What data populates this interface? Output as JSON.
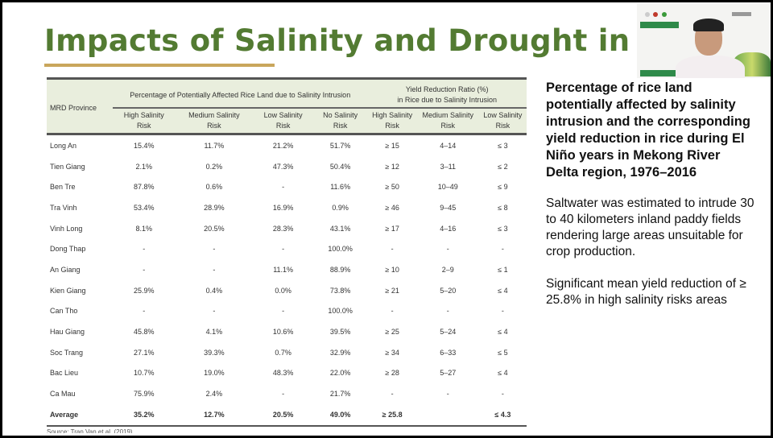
{
  "slide": {
    "title": "Impacts of Salinity and Drought in Vietnam",
    "colors": {
      "title": "#537b32",
      "underline": "#c9a65c",
      "header_bg": "#e9eedd"
    }
  },
  "table": {
    "province_header": "MRD Province",
    "group1": "Percentage of Potentially Affected Rice Land due to Salinity Intrusion",
    "group2_line1": "Yield Reduction Ratio (%)",
    "group2_line2": "in Rice due to Salinity Intrusion",
    "columns": [
      [
        "High Salinity",
        "Risk"
      ],
      [
        "Medium Salinity",
        "Risk"
      ],
      [
        "Low Salinity",
        "Risk"
      ],
      [
        "No Salinity",
        "Risk"
      ],
      [
        "High Salinity",
        "Risk"
      ],
      [
        "Medium Salinity",
        "Risk"
      ],
      [
        "Low Salinity",
        "Risk"
      ]
    ],
    "rows": [
      [
        "Long An",
        "15.4%",
        "11.7%",
        "21.2%",
        "51.7%",
        "≥ 15",
        "4–14",
        "≤ 3"
      ],
      [
        "Tien Giang",
        "2.1%",
        "0.2%",
        "47.3%",
        "50.4%",
        "≥ 12",
        "3–11",
        "≤ 2"
      ],
      [
        "Ben Tre",
        "87.8%",
        "0.6%",
        "-",
        "11.6%",
        "≥ 50",
        "10–49",
        "≤ 9"
      ],
      [
        "Tra Vinh",
        "53.4%",
        "28.9%",
        "16.9%",
        "0.9%",
        "≥ 46",
        "9–45",
        "≤ 8"
      ],
      [
        "Vinh Long",
        "8.1%",
        "20.5%",
        "28.3%",
        "43.1%",
        "≥ 17",
        "4–16",
        "≤ 3"
      ],
      [
        "Dong Thap",
        "-",
        "-",
        "-",
        "100.0%",
        "-",
        "-",
        "-"
      ],
      [
        "An Giang",
        "-",
        "-",
        "11.1%",
        "88.9%",
        "≥ 10",
        "2–9",
        "≤ 1"
      ],
      [
        "Kien Giang",
        "25.9%",
        "0.4%",
        "0.0%",
        "73.8%",
        "≥ 21",
        "5–20",
        "≤ 4"
      ],
      [
        "Can Tho",
        "-",
        "-",
        "-",
        "100.0%",
        "-",
        "-",
        "-"
      ],
      [
        "Hau Giang",
        "45.8%",
        "4.1%",
        "10.6%",
        "39.5%",
        "≥ 25",
        "5–24",
        "≤ 4"
      ],
      [
        "Soc Trang",
        "27.1%",
        "39.3%",
        "0.7%",
        "32.9%",
        "≥ 34",
        "6–33",
        "≤ 5"
      ],
      [
        "Bac Lieu",
        "10.7%",
        "19.0%",
        "48.3%",
        "22.0%",
        "≥ 28",
        "5–27",
        "≤ 4"
      ],
      [
        "Ca Mau",
        "75.9%",
        "2.4%",
        "-",
        "21.7%",
        "-",
        "-",
        "-"
      ]
    ],
    "average": [
      "Average",
      "35.2%",
      "12.7%",
      "20.5%",
      "49.0%",
      "≥ 25.8",
      "",
      "≤ 4.3"
    ],
    "source": "Source: Tran Van et al. (2019)"
  },
  "side": {
    "heading": "Percentage of rice land potentially affected by salinity intrusion and the corresponding yield reduction in rice during El Niño years in Mekong River Delta region, 1976–2016",
    "para1": "Saltwater was estimated to intrude 30 to 40 kilometers inland paddy fields rendering large areas unsuitable for crop production.",
    "para2": "Significant mean yield reduction of ≥ 25.8% in high salinity risks areas"
  }
}
